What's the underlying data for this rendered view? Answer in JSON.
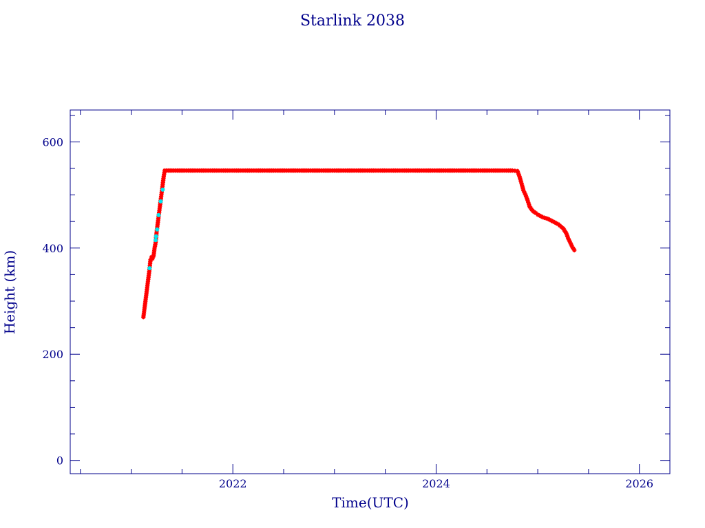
{
  "chart_data": {
    "type": "scatter",
    "title": "Starlink 2038",
    "xlabel": "Time(UTC)",
    "ylabel": "Height (km)",
    "xlim": [
      2020.4,
      2026.3
    ],
    "ylim": [
      -25,
      660
    ],
    "x_ticks": [
      2022,
      2024,
      2026
    ],
    "x_tick_labels": [
      "2022",
      "2024",
      "2026"
    ],
    "y_ticks": [
      0,
      200,
      400,
      600
    ],
    "y_tick_labels": [
      "0",
      "200",
      "400",
      "600"
    ],
    "grid": false,
    "legend": false,
    "colors": {
      "axes": "#00008b",
      "text": "#00008b",
      "main_series": "#ff0000",
      "highlight_series": "#00e5ee"
    },
    "series": [
      {
        "marker": "star",
        "color": "#ff0000",
        "points": [
          [
            2021.12,
            270
          ],
          [
            2021.13,
            285
          ],
          [
            2021.14,
            300
          ],
          [
            2021.15,
            315
          ],
          [
            2021.16,
            330
          ],
          [
            2021.17,
            345
          ],
          [
            2021.18,
            360
          ],
          [
            2021.19,
            378
          ],
          [
            2021.2,
            383
          ],
          [
            2021.21,
            380
          ],
          [
            2021.22,
            385
          ],
          [
            2021.23,
            400
          ],
          [
            2021.24,
            410
          ],
          [
            2021.245,
            420
          ],
          [
            2021.25,
            430
          ],
          [
            2021.26,
            445
          ],
          [
            2021.27,
            460
          ],
          [
            2021.28,
            475
          ],
          [
            2021.29,
            490
          ],
          [
            2021.3,
            505
          ],
          [
            2021.31,
            520
          ],
          [
            2021.32,
            535
          ],
          [
            2021.33,
            546
          ],
          [
            2021.4,
            546
          ],
          [
            2021.6,
            546
          ],
          [
            2021.8,
            546
          ],
          [
            2022.0,
            546
          ],
          [
            2022.2,
            546
          ],
          [
            2022.4,
            546
          ],
          [
            2022.6,
            546
          ],
          [
            2022.8,
            546
          ],
          [
            2023.0,
            546
          ],
          [
            2023.2,
            546
          ],
          [
            2023.4,
            546
          ],
          [
            2023.6,
            546
          ],
          [
            2023.8,
            546
          ],
          [
            2024.0,
            546
          ],
          [
            2024.2,
            546
          ],
          [
            2024.4,
            546
          ],
          [
            2024.6,
            546
          ],
          [
            2024.75,
            546
          ],
          [
            2024.8,
            545
          ],
          [
            2024.82,
            535
          ],
          [
            2024.84,
            522
          ],
          [
            2024.86,
            508
          ],
          [
            2024.88,
            500
          ],
          [
            2024.9,
            490
          ],
          [
            2024.92,
            478
          ],
          [
            2024.95,
            470
          ],
          [
            2024.98,
            466
          ],
          [
            2025.0,
            463
          ],
          [
            2025.05,
            458
          ],
          [
            2025.1,
            455
          ],
          [
            2025.15,
            450
          ],
          [
            2025.2,
            445
          ],
          [
            2025.25,
            437
          ],
          [
            2025.28,
            428
          ],
          [
            2025.3,
            418
          ],
          [
            2025.32,
            410
          ],
          [
            2025.34,
            402
          ],
          [
            2025.36,
            396
          ]
        ]
      },
      {
        "marker": "dot",
        "color": "#00e5ee",
        "points": [
          [
            2021.18,
            362
          ],
          [
            2021.24,
            415
          ],
          [
            2021.245,
            422
          ],
          [
            2021.255,
            435
          ],
          [
            2021.27,
            462
          ],
          [
            2021.29,
            488
          ],
          [
            2021.31,
            510
          ]
        ]
      }
    ]
  }
}
